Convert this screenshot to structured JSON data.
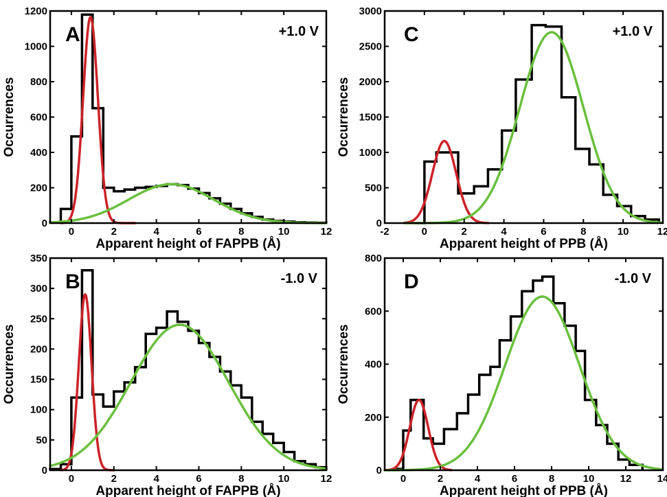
{
  "colors": {
    "hist": "#000000",
    "peak1": "#cc2229",
    "peak2": "#6abf3e"
  },
  "chart_data": [
    {
      "type": "histogram",
      "panel_label": "A",
      "annotation": "+1.0 V",
      "xlabel": "Apparent height of FAPPB (Å)",
      "ylabel": "Occurrences",
      "xlim": [
        -1,
        12
      ],
      "ylim": [
        0,
        1200
      ],
      "xticks": [
        0,
        2,
        4,
        6,
        8,
        10,
        12
      ],
      "yticks": [
        0,
        200,
        400,
        600,
        800,
        1000,
        1200
      ],
      "hist": {
        "bin_edges": [
          -1,
          -0.5,
          0,
          0.5,
          1,
          1.5,
          2,
          2.5,
          3,
          3.5,
          4,
          4.5,
          5,
          5.5,
          6,
          6.5,
          7,
          7.5,
          8,
          8.5,
          9,
          9.5,
          10,
          10.5,
          11,
          11.5,
          12
        ],
        "counts": [
          5,
          80,
          490,
          1180,
          650,
          200,
          180,
          190,
          200,
          205,
          210,
          220,
          215,
          195,
          170,
          140,
          110,
          80,
          55,
          35,
          20,
          12,
          8,
          5,
          3,
          2
        ]
      },
      "fits": [
        {
          "color": "peak1",
          "amplitude": 1165,
          "center": 0.9,
          "sigma": 0.35,
          "xrange": [
            -0.5,
            3
          ]
        },
        {
          "color": "peak2",
          "amplitude": 220,
          "center": 4.7,
          "sigma": 2.0,
          "xrange": [
            -1,
            12
          ]
        }
      ]
    },
    {
      "type": "histogram",
      "panel_label": "B",
      "annotation": "-1.0 V",
      "xlabel": "Apparent height of FAPPB (Å)",
      "ylabel": "Occurrences",
      "xlim": [
        -1,
        12
      ],
      "ylim": [
        0,
        350
      ],
      "xticks": [
        0,
        2,
        4,
        6,
        8,
        10,
        12
      ],
      "yticks": [
        0,
        50,
        100,
        150,
        200,
        250,
        300,
        350
      ],
      "hist": {
        "bin_edges": [
          -1,
          -0.5,
          0,
          0.5,
          1,
          1.5,
          2,
          2.5,
          3,
          3.5,
          4,
          4.5,
          5,
          5.5,
          6,
          6.5,
          7,
          7.5,
          8,
          8.5,
          9,
          9.5,
          10,
          10.5,
          11,
          11.5,
          12
        ],
        "counts": [
          2,
          10,
          120,
          330,
          125,
          105,
          130,
          145,
          170,
          225,
          235,
          262,
          245,
          230,
          210,
          187,
          163,
          140,
          120,
          80,
          60,
          45,
          30,
          15,
          10,
          5
        ]
      },
      "fits": [
        {
          "color": "peak1",
          "amplitude": 290,
          "center": 0.65,
          "sigma": 0.3,
          "xrange": [
            -0.5,
            2
          ]
        },
        {
          "color": "peak2",
          "amplitude": 240,
          "center": 5.1,
          "sigma": 2.3,
          "xrange": [
            -1,
            12
          ]
        }
      ]
    },
    {
      "type": "histogram",
      "panel_label": "C",
      "annotation": "+1.0 V",
      "xlabel": "Apparent height of PPB (Å)",
      "ylabel": "Occurrences",
      "xlim": [
        -2,
        12
      ],
      "ylim": [
        0,
        3000
      ],
      "xticks": [
        -2,
        0,
        2,
        4,
        6,
        8,
        10,
        12
      ],
      "yticks": [
        0,
        500,
        1000,
        1500,
        2000,
        2500,
        3000
      ],
      "hist": {
        "bin_edges": [
          -2,
          -1.5,
          -1,
          -0.5,
          0,
          0.5,
          1,
          1.5,
          2,
          2.5,
          3,
          3.5,
          4,
          4.5,
          5,
          5.5,
          6,
          6.5,
          7,
          7.5,
          8,
          8.5,
          9,
          9.5,
          10,
          10.5,
          11,
          11.5,
          12
        ],
        "counts": [
          0,
          0,
          0,
          10,
          870,
          870,
          1000,
          1000,
          420,
          420,
          520,
          520,
          760,
          760,
          1310,
          1310,
          2030,
          2030,
          2800,
          2800,
          2780,
          2780,
          1780,
          1780,
          1050,
          1050,
          830,
          830
        ],
        "steps": [
          [
            -0.5,
            0
          ],
          [
            0,
            870
          ],
          [
            0.6,
            1000
          ],
          [
            1.7,
            420
          ],
          [
            2.5,
            520
          ],
          [
            3.2,
            760
          ],
          [
            3.9,
            1310
          ],
          [
            4.6,
            2030
          ],
          [
            5.4,
            2800
          ],
          [
            6.1,
            2780
          ],
          [
            6.9,
            1780
          ],
          [
            7.6,
            1050
          ],
          [
            8.3,
            830
          ],
          [
            9.0,
            400
          ],
          [
            9.7,
            240
          ],
          [
            10.4,
            100
          ],
          [
            11.1,
            50
          ],
          [
            11.8,
            0
          ]
        ]
      },
      "fits": [
        {
          "color": "peak1",
          "amplitude": 1160,
          "center": 1.0,
          "sigma": 0.6,
          "xrange": [
            -1,
            3.2
          ]
        },
        {
          "color": "peak2",
          "amplitude": 2700,
          "center": 6.4,
          "sigma": 1.6,
          "xrange": [
            -1,
            12
          ]
        }
      ]
    },
    {
      "type": "histogram",
      "panel_label": "D",
      "annotation": "-1.0 V",
      "xlabel": "Apparent height of PPB (Å)",
      "ylabel": "Occurrences",
      "xlim": [
        -1,
        14
      ],
      "ylim": [
        0,
        800
      ],
      "xticks": [
        0,
        2,
        4,
        6,
        8,
        10,
        12,
        14
      ],
      "yticks": [
        0,
        200,
        400,
        600,
        800
      ],
      "hist": {
        "steps": [
          [
            -0.5,
            5
          ],
          [
            0,
            150
          ],
          [
            0.4,
            265
          ],
          [
            1.1,
            120
          ],
          [
            1.6,
            100
          ],
          [
            2.2,
            155
          ],
          [
            2.9,
            215
          ],
          [
            3.5,
            285
          ],
          [
            4.1,
            360
          ],
          [
            4.7,
            390
          ],
          [
            5.2,
            490
          ],
          [
            5.8,
            580
          ],
          [
            6.4,
            675
          ],
          [
            7.0,
            715
          ],
          [
            7.5,
            730
          ],
          [
            8.1,
            630
          ],
          [
            8.7,
            545
          ],
          [
            9.3,
            450
          ],
          [
            9.8,
            265
          ],
          [
            10.4,
            170
          ],
          [
            11.0,
            100
          ],
          [
            11.6,
            40
          ],
          [
            12.2,
            20
          ],
          [
            12.9,
            0
          ]
        ]
      },
      "fits": [
        {
          "color": "peak1",
          "amplitude": 265,
          "center": 0.85,
          "sigma": 0.5,
          "xrange": [
            -1,
            2.6
          ]
        },
        {
          "color": "peak2",
          "amplitude": 655,
          "center": 7.5,
          "sigma": 2.0,
          "xrange": [
            -1,
            14
          ]
        }
      ]
    }
  ]
}
